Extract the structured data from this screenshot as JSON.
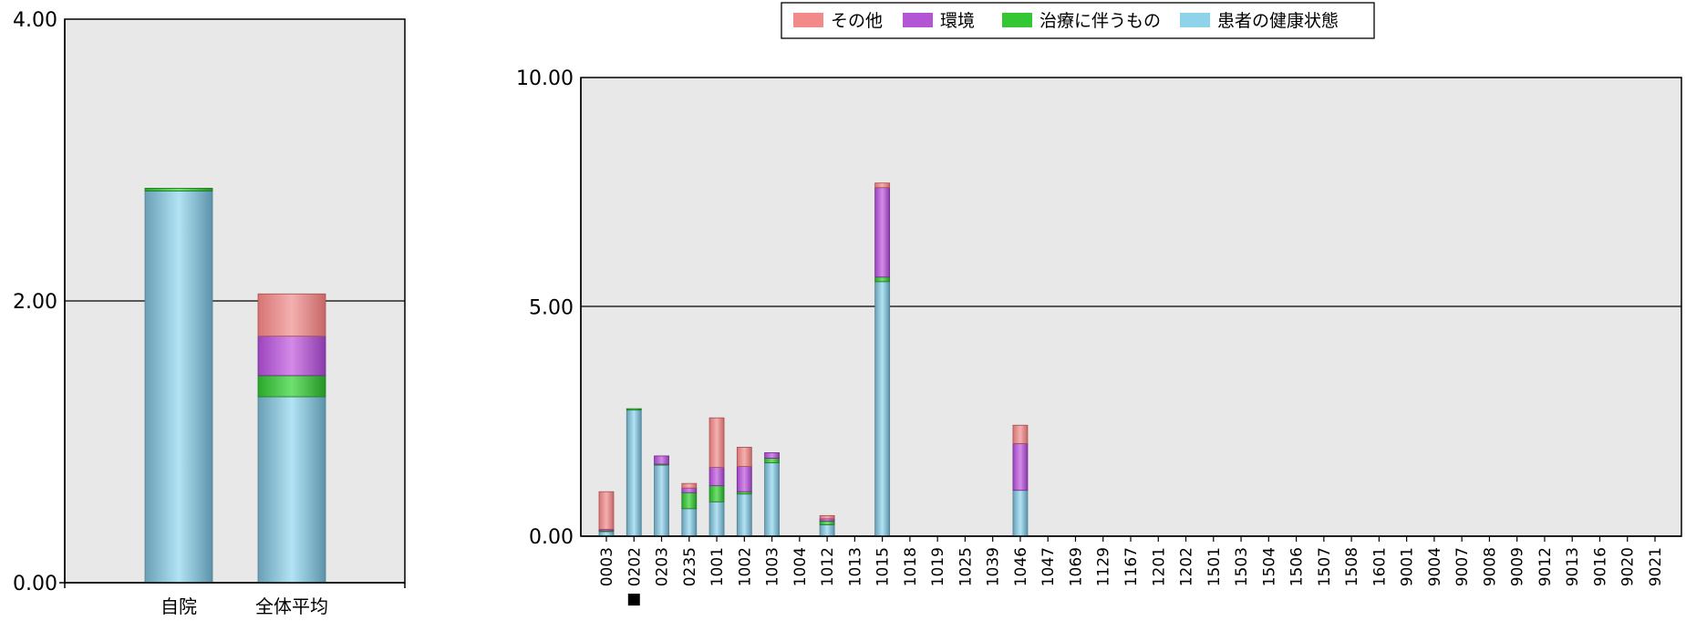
{
  "legend": [
    {
      "name": "その他",
      "color": "#f28a8a"
    },
    {
      "name": "環境",
      "color": "#b455d6"
    },
    {
      "name": "治療に伴うもの",
      "color": "#33c733"
    },
    {
      "name": "患者の健康状態",
      "color": "#8fd3ea"
    }
  ],
  "chart_data": [
    {
      "type": "bar",
      "stacked": true,
      "categories": [
        "自院",
        "全体平均"
      ],
      "ylim": [
        0,
        4
      ],
      "yticks": [
        "0.00",
        "2.00",
        "4.00"
      ],
      "grid": "horizontal line at 2.00",
      "series": [
        {
          "name": "患者の健康状態",
          "values": [
            2.78,
            1.32
          ]
        },
        {
          "name": "治療に伴うもの",
          "values": [
            0.02,
            0.15
          ]
        },
        {
          "name": "環境",
          "values": [
            0,
            0.28
          ]
        },
        {
          "name": "その他",
          "values": [
            0,
            0.3
          ]
        }
      ]
    },
    {
      "type": "bar",
      "stacked": true,
      "legend_position": "top",
      "categories": [
        "0003",
        "0202",
        "0203",
        "0235",
        "1001",
        "1002",
        "1003",
        "1004",
        "1012",
        "1013",
        "1015",
        "1018",
        "1019",
        "1025",
        "1039",
        "1046",
        "1047",
        "1069",
        "1129",
        "1167",
        "1201",
        "1202",
        "1501",
        "1503",
        "1504",
        "1506",
        "1507",
        "1508",
        "1601",
        "9001",
        "9004",
        "9007",
        "9008",
        "9009",
        "9012",
        "9013",
        "9016",
        "9020",
        "9021"
      ],
      "marked_category": "0202",
      "marker_symbol": "■",
      "ylim": [
        0,
        10
      ],
      "yticks": [
        "0.00",
        "5.00",
        "10.00"
      ],
      "grid": "horizontal line at 5.00",
      "series": [
        {
          "name": "患者の健康状態",
          "values": [
            0.1,
            2.75,
            1.55,
            0.6,
            0.75,
            0.92,
            1.6,
            0,
            0.25,
            0,
            5.55,
            0,
            0,
            0,
            0,
            1.0,
            0,
            0,
            0,
            0,
            0,
            0,
            0,
            0,
            0,
            0,
            0,
            0,
            0,
            0,
            0,
            0,
            0,
            0,
            0,
            0,
            0,
            0,
            0
          ]
        },
        {
          "name": "治療に伴うもの",
          "values": [
            0.02,
            0.03,
            0.02,
            0.35,
            0.35,
            0.05,
            0.1,
            0,
            0.08,
            0,
            0.1,
            0,
            0,
            0,
            0,
            0,
            0,
            0,
            0,
            0,
            0,
            0,
            0,
            0,
            0,
            0,
            0,
            0,
            0,
            0,
            0,
            0,
            0,
            0,
            0,
            0,
            0,
            0,
            0
          ]
        },
        {
          "name": "環境",
          "values": [
            0.03,
            0,
            0.18,
            0.1,
            0.4,
            0.55,
            0.12,
            0,
            0.05,
            0,
            1.95,
            0,
            0,
            0,
            0,
            1.02,
            0,
            0,
            0,
            0,
            0,
            0,
            0,
            0,
            0,
            0,
            0,
            0,
            0,
            0,
            0,
            0,
            0,
            0,
            0,
            0,
            0,
            0,
            0
          ]
        },
        {
          "name": "その他",
          "values": [
            0.82,
            0,
            0,
            0.1,
            1.08,
            0.42,
            0,
            0,
            0.07,
            0,
            0.1,
            0,
            0,
            0,
            0,
            0.4,
            0,
            0,
            0,
            0,
            0,
            0,
            0,
            0,
            0,
            0,
            0,
            0,
            0,
            0,
            0,
            0,
            0,
            0,
            0,
            0,
            0,
            0,
            0
          ]
        }
      ]
    }
  ]
}
